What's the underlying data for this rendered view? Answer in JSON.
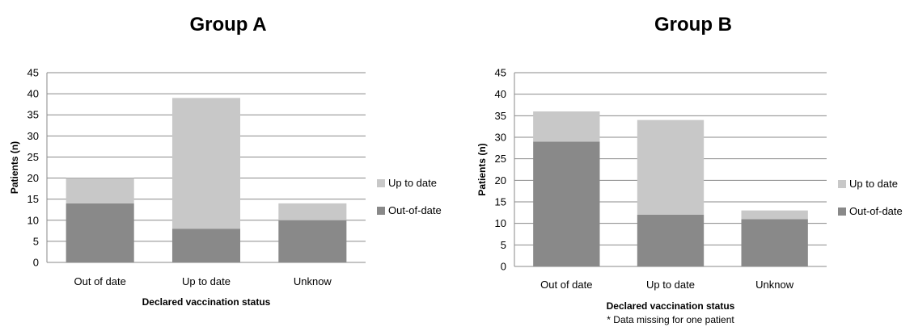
{
  "chart_data": [
    {
      "type": "bar",
      "stacked": true,
      "title": "Group A",
      "xlabel": "Declared vaccination status",
      "ylabel": "Patients (n)",
      "categories": [
        "Out of date",
        "Up to date",
        "Unknow"
      ],
      "series": [
        {
          "name": "Out-of-date",
          "values": [
            14,
            8,
            10
          ],
          "color": "#898989"
        },
        {
          "name": "Up to date",
          "values": [
            6,
            31,
            4
          ],
          "color": "#c8c8c8"
        }
      ],
      "ylim": [
        0,
        45
      ],
      "yticks": [
        0,
        5,
        10,
        15,
        20,
        25,
        30,
        35,
        40,
        45
      ],
      "grid": true,
      "legend": "right",
      "note": ""
    },
    {
      "type": "bar",
      "stacked": true,
      "title": "Group B",
      "xlabel": "Declared vaccination status",
      "ylabel": "Patients (n)",
      "categories": [
        "Out of date",
        "Up to date",
        "Unknow"
      ],
      "series": [
        {
          "name": "Out-of-date",
          "values": [
            29,
            12,
            11
          ],
          "color": "#898989"
        },
        {
          "name": "Up to date",
          "values": [
            7,
            22,
            2
          ],
          "color": "#c8c8c8"
        }
      ],
      "ylim": [
        0,
        45
      ],
      "yticks": [
        0,
        5,
        10,
        15,
        20,
        25,
        30,
        35,
        40,
        45
      ],
      "grid": true,
      "legend": "right",
      "note": "* Data missing for one patient"
    }
  ]
}
